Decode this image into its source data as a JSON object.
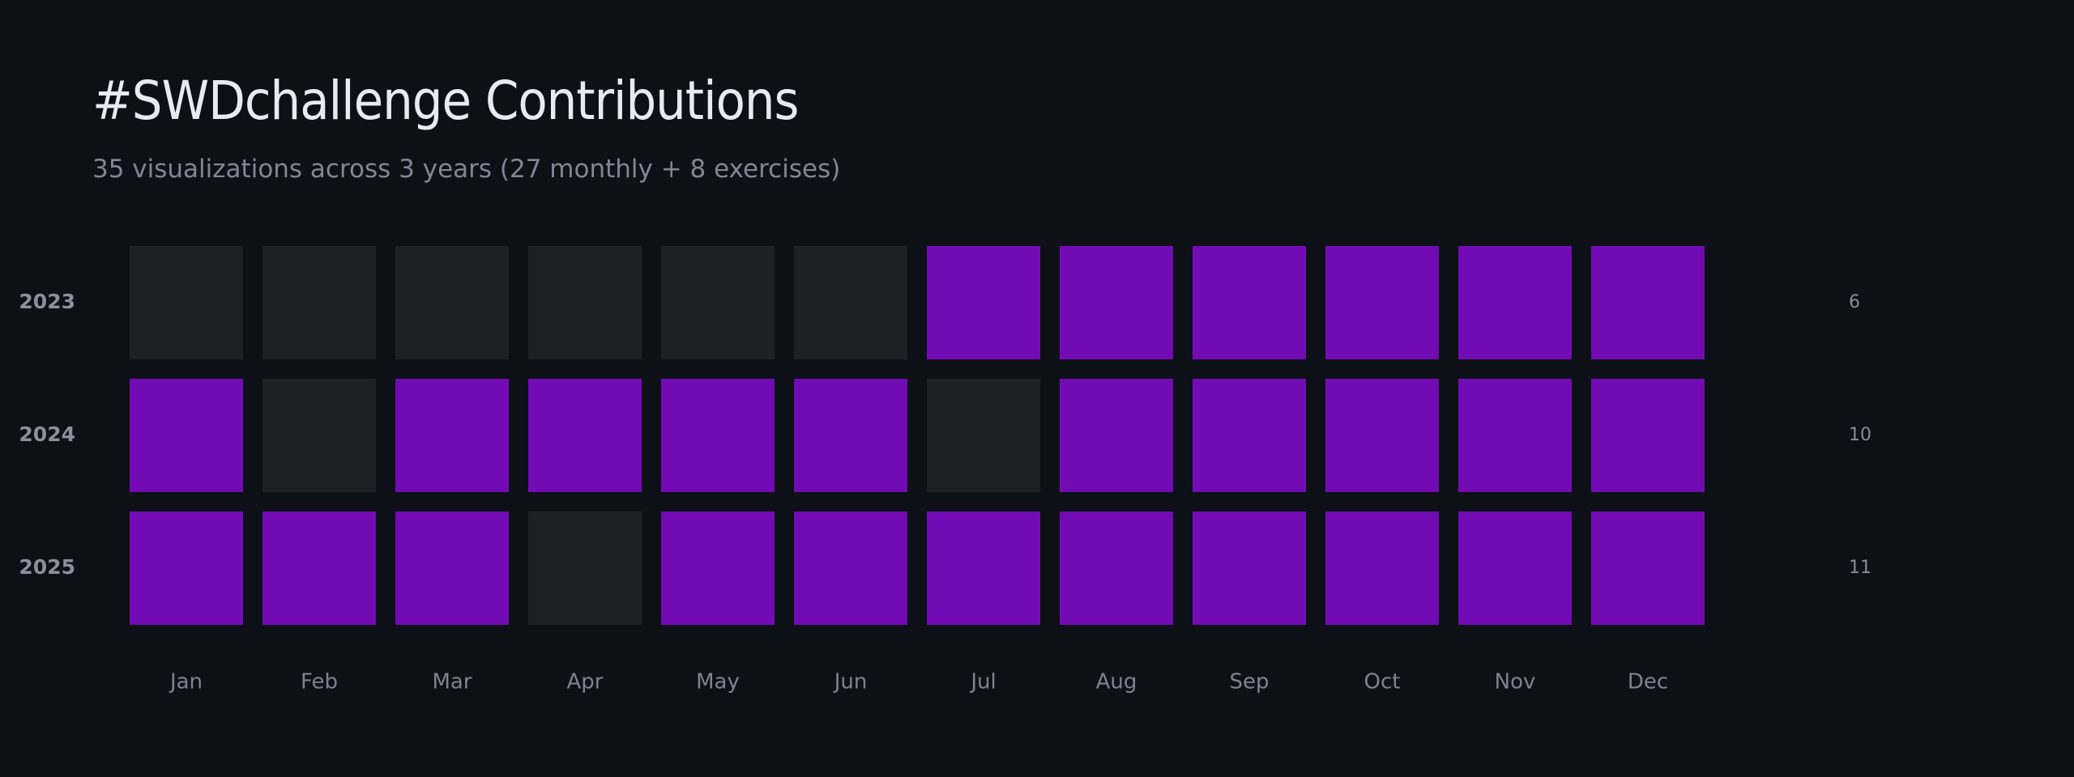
{
  "title": "#SWDchallenge Contributions",
  "subtitle": "35 visualizations across 3 years (27 monthly + 8 exercises)",
  "colors": {
    "background": "#0d1017",
    "active": "#730bb5",
    "inactive": "#1c2027"
  },
  "chart_data": {
    "type": "heatmap",
    "title": "#SWDchallenge Contributions",
    "subtitle": "35 visualizations across 3 years (27 monthly + 8 exercises)",
    "columns": [
      "Jan",
      "Feb",
      "Mar",
      "Apr",
      "May",
      "Jun",
      "Jul",
      "Aug",
      "Sep",
      "Oct",
      "Nov",
      "Dec"
    ],
    "rows": [
      {
        "year": "2023",
        "values": [
          0,
          0,
          0,
          0,
          0,
          0,
          1,
          1,
          1,
          1,
          1,
          1
        ],
        "total": "6"
      },
      {
        "year": "2024",
        "values": [
          1,
          0,
          1,
          1,
          1,
          1,
          0,
          1,
          1,
          1,
          1,
          1
        ],
        "total": "10"
      },
      {
        "year": "2025",
        "values": [
          1,
          1,
          1,
          0,
          1,
          1,
          1,
          1,
          1,
          1,
          1,
          1
        ],
        "total": "11"
      }
    ],
    "grid": false,
    "legend": "none"
  }
}
